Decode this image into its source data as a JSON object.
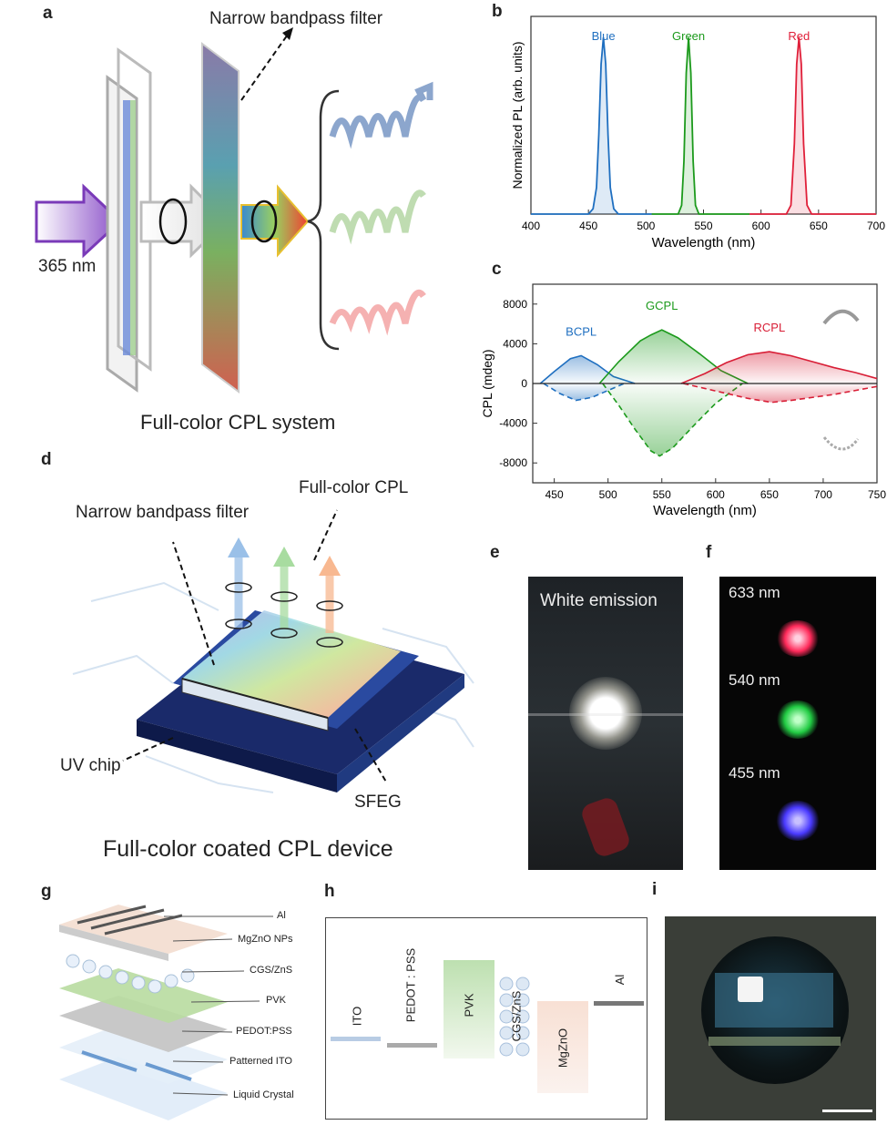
{
  "panels": {
    "a": {
      "letter": "a",
      "excitation": "365 nm",
      "filter_label": "Narrow bandpass filter",
      "caption": "Full-color CPL system"
    },
    "b": {
      "letter": "b"
    },
    "c": {
      "letter": "c"
    },
    "d": {
      "letter": "d",
      "filter_label": "Narrow bandpass filter",
      "output_label": "Full-color CPL",
      "chip_label": "UV chip",
      "sfeg_label": "SFEG",
      "caption": "Full-color coated CPL device"
    },
    "e": {
      "letter": "e",
      "label": "White emission"
    },
    "f": {
      "letter": "f",
      "spots": [
        {
          "label": "633 nm",
          "color": "#ff2a5a"
        },
        {
          "label": "540 nm",
          "color": "#22dd44"
        },
        {
          "label": "455 nm",
          "color": "#4a3aff"
        }
      ]
    },
    "g": {
      "letter": "g",
      "layers": [
        "Al",
        "MgZnO NPs",
        "CGS/ZnS",
        "PVK",
        "PEDOT:PSS",
        "Patterned ITO",
        "Liquid Crystal"
      ]
    },
    "h": {
      "letter": "h",
      "layers": [
        "ITO",
        "PEDOT : PSS",
        "PVK",
        "CGS/ZnS",
        "MgZnO",
        "Al"
      ]
    },
    "i": {
      "letter": "i"
    }
  },
  "chart_data": [
    {
      "id": "b",
      "type": "line",
      "xlabel": "Wavelength (nm)",
      "ylabel": "Normalized PL (arb. units)",
      "xlim": [
        400,
        700
      ],
      "ylim": [
        0,
        1.12
      ],
      "xticks": [
        400,
        450,
        500,
        550,
        600,
        650,
        700
      ],
      "series": [
        {
          "name": "Blue",
          "color": "#1f6fc0",
          "x": [
            400,
            450,
            454,
            457,
            459,
            461,
            463,
            465,
            467,
            469,
            472,
            476,
            505
          ],
          "y": [
            0,
            0,
            0.03,
            0.15,
            0.45,
            0.85,
            1,
            0.85,
            0.45,
            0.15,
            0.03,
            0,
            0
          ]
        },
        {
          "name": "Green",
          "color": "#1c9a1c",
          "x": [
            505,
            528,
            531,
            533,
            535,
            537,
            539,
            541,
            543,
            546,
            590
          ],
          "y": [
            0,
            0,
            0.05,
            0.3,
            0.8,
            1,
            0.8,
            0.3,
            0.05,
            0,
            0
          ]
        },
        {
          "name": "Red",
          "color": "#e0203a",
          "x": [
            590,
            622,
            626,
            629,
            631,
            633,
            635,
            637,
            640,
            644,
            700
          ],
          "y": [
            0,
            0,
            0.05,
            0.4,
            0.85,
            1,
            0.85,
            0.4,
            0.05,
            0,
            0
          ]
        }
      ]
    },
    {
      "id": "c",
      "type": "area",
      "xlabel": "Wavelength (nm)",
      "ylabel": "CPL (mdeg)",
      "xlim": [
        430,
        750
      ],
      "ylim": [
        -10000,
        10000
      ],
      "xticks": [
        450,
        500,
        550,
        600,
        650,
        700,
        750
      ],
      "yticks": [
        -8000,
        -4000,
        0,
        4000,
        8000
      ],
      "series": [
        {
          "name": "BCPL",
          "color": "#1f6fc0",
          "pos": {
            "x": [
              437,
              450,
              465,
              475,
              490,
              505,
              525
            ],
            "y": [
              0,
              1200,
              2500,
              2800,
              1900,
              700,
              0
            ]
          },
          "neg": {
            "x": [
              440,
              455,
              470,
              485,
              500,
              515
            ],
            "y": [
              0,
              -1000,
              -1700,
              -1400,
              -700,
              0
            ]
          }
        },
        {
          "name": "GCPL",
          "color": "#1c9a1c",
          "pos": {
            "x": [
              492,
              510,
              530,
              540,
              550,
              565,
              585,
              605,
              630
            ],
            "y": [
              0,
              2200,
              4300,
              4900,
              5400,
              4600,
              3000,
              1300,
              0
            ]
          },
          "neg": {
            "x": [
              495,
              510,
              525,
              540,
              548,
              560,
              580,
              600,
              625
            ],
            "y": [
              0,
              -2200,
              -4600,
              -6800,
              -7300,
              -6500,
              -4200,
              -2000,
              0
            ]
          }
        },
        {
          "name": "RCPL",
          "color": "#d81e36",
          "pos": {
            "x": [
              568,
              590,
              610,
              630,
              650,
              670,
              690,
              710,
              730,
              750
            ],
            "y": [
              0,
              1000,
              2100,
              2900,
              3200,
              2800,
              2200,
              1600,
              1100,
              500
            ]
          },
          "neg": {
            "x": [
              570,
              590,
              610,
              630,
              652,
              670,
              690,
              710,
              730,
              750
            ],
            "y": [
              0,
              -500,
              -1000,
              -1500,
              -1900,
              -1700,
              -1400,
              -1100,
              -700,
              -300
            ]
          }
        }
      ]
    }
  ]
}
